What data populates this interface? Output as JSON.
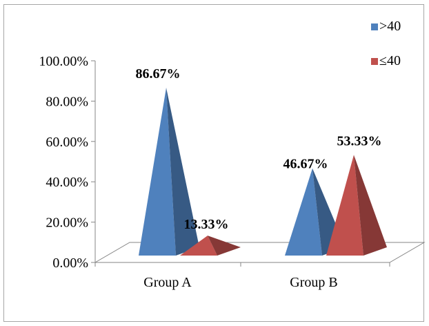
{
  "chart_data": {
    "type": "bar",
    "subtype": "3d-pyramid",
    "categories": [
      "Group A",
      "Group B"
    ],
    "series": [
      {
        "name": ">40",
        "values": [
          86.67,
          46.67
        ],
        "labels": [
          "86.67%",
          "46.67%"
        ],
        "color": "#4f81bd"
      },
      {
        "name": "≤40",
        "values": [
          13.33,
          53.33
        ],
        "labels": [
          "13.33%",
          "53.33%"
        ],
        "color": "#c0504d"
      }
    ],
    "y_ticks": [
      "0.00%",
      "20.00%",
      "40.00%",
      "60.00%",
      "80.00%",
      "100.00%"
    ],
    "ylim": [
      0,
      100
    ],
    "legend_position": "top-right",
    "grid": false
  }
}
